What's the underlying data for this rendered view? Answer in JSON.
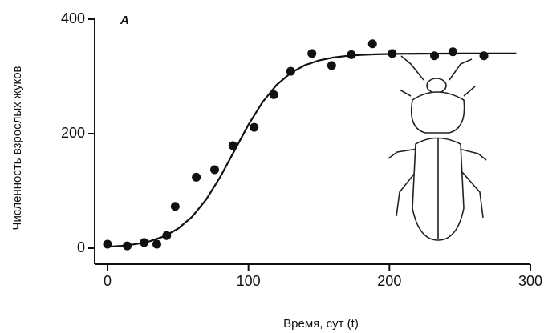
{
  "chart_data": {
    "type": "scatter",
    "annotation": "А",
    "xlabel": "Время, сут (t)",
    "ylabel": "Численность взрослых жуков",
    "x": [
      0,
      14,
      26,
      35,
      42,
      48,
      63,
      76,
      89,
      104,
      118,
      130,
      145,
      159,
      173,
      188,
      202,
      232,
      245,
      267
    ],
    "values": [
      7,
      4,
      10,
      7,
      22,
      73,
      124,
      137,
      179,
      211,
      268,
      309,
      340,
      319,
      338,
      357,
      340,
      336,
      343,
      336
    ],
    "color": "#111111",
    "fit": {
      "x": [
        0,
        10,
        20,
        30,
        40,
        50,
        60,
        70,
        80,
        90,
        100,
        110,
        120,
        130,
        140,
        150,
        160,
        170,
        180,
        190,
        200,
        210,
        220,
        230,
        240,
        250,
        260,
        270,
        280,
        290
      ],
      "values": [
        2.4,
        4.1,
        7.1,
        12.1,
        20.5,
        33.9,
        54.8,
        85,
        124.5,
        170,
        215.6,
        255.1,
        285.2,
        306,
        319.6,
        327.9,
        332.9,
        335.9,
        337.6,
        338.6,
        339.2,
        339.5,
        339.7,
        339.8,
        339.9,
        340,
        340,
        340,
        340,
        340
      ]
    },
    "xlim": [
      0,
      300
    ],
    "ylim": [
      0,
      400
    ],
    "xticks": [
      0,
      100,
      200,
      300
    ],
    "yticks": [
      0,
      200,
      400
    ]
  }
}
